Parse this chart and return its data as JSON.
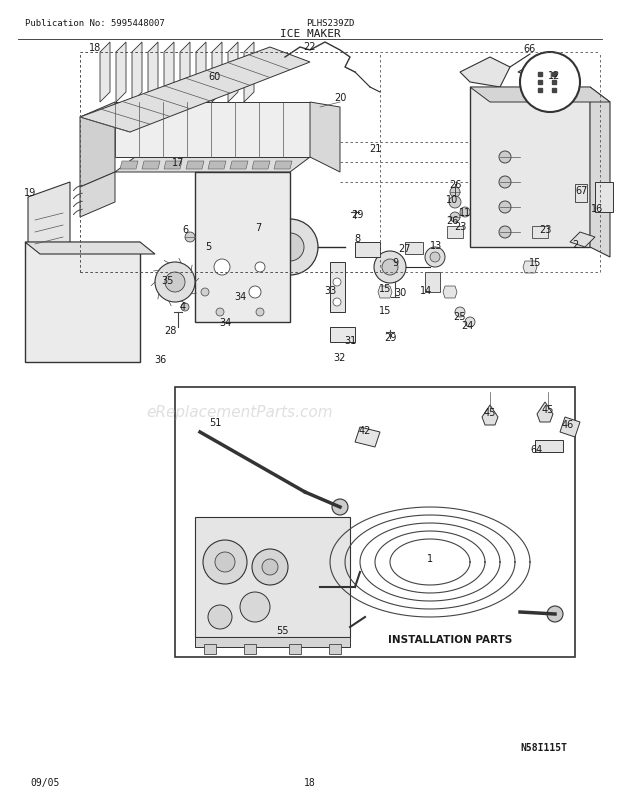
{
  "title_pub": "Publication No: 5995448007",
  "title_model": "PLHS239ZD",
  "title_section": "ICE MAKER",
  "footer_date": "09/05",
  "footer_page": "18",
  "diagram_id": "N58I115T",
  "install_label": "INSTALLATION PARTS",
  "bg_color": "#ffffff",
  "text_color": "#1a1a1a",
  "watermark": "eReplacementParts.com",
  "line_color": "#2a2a2a"
}
